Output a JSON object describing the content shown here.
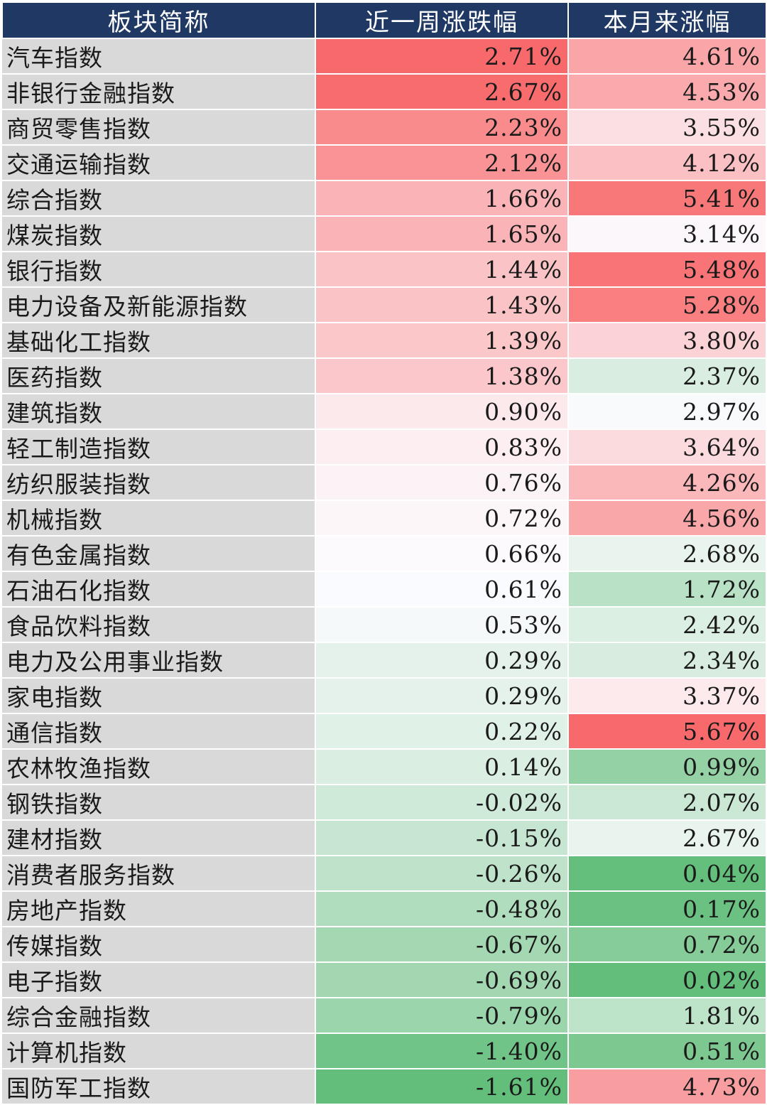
{
  "chart_data": {
    "type": "table",
    "columns": [
      "板块简称",
      "近一周涨跌幅",
      "本月来涨幅"
    ],
    "rows": [
      [
        "汽车指数",
        "2.71%",
        "4.61%"
      ],
      [
        "非银行金融指数",
        "2.67%",
        "4.53%"
      ],
      [
        "商贸零售指数",
        "2.23%",
        "3.55%"
      ],
      [
        "交通运输指数",
        "2.12%",
        "4.12%"
      ],
      [
        "综合指数",
        "1.66%",
        "5.41%"
      ],
      [
        "煤炭指数",
        "1.65%",
        "3.14%"
      ],
      [
        "银行指数",
        "1.44%",
        "5.48%"
      ],
      [
        "电力设备及新能源指数",
        "1.43%",
        "5.28%"
      ],
      [
        "基础化工指数",
        "1.39%",
        "3.80%"
      ],
      [
        "医药指数",
        "1.38%",
        "2.37%"
      ],
      [
        "建筑指数",
        "0.90%",
        "2.97%"
      ],
      [
        "轻工制造指数",
        "0.83%",
        "3.64%"
      ],
      [
        "纺织服装指数",
        "0.76%",
        "4.26%"
      ],
      [
        "机械指数",
        "0.72%",
        "4.56%"
      ],
      [
        "有色金属指数",
        "0.66%",
        "2.68%"
      ],
      [
        "石油石化指数",
        "0.61%",
        "1.72%"
      ],
      [
        "食品饮料指数",
        "0.53%",
        "2.42%"
      ],
      [
        "电力及公用事业指数",
        "0.29%",
        "2.34%"
      ],
      [
        "家电指数",
        "0.29%",
        "3.37%"
      ],
      [
        "通信指数",
        "0.22%",
        "5.67%"
      ],
      [
        "农林牧渔指数",
        "0.14%",
        "0.99%"
      ],
      [
        "钢铁指数",
        "-0.02%",
        "2.07%"
      ],
      [
        "建材指数",
        "-0.15%",
        "2.67%"
      ],
      [
        "消费者服务指数",
        "-0.26%",
        "0.04%"
      ],
      [
        "房地产指数",
        "-0.48%",
        "0.17%"
      ],
      [
        "传媒指数",
        "-0.67%",
        "0.72%"
      ],
      [
        "电子指数",
        "-0.69%",
        "0.02%"
      ],
      [
        "综合金融指数",
        "-0.79%",
        "1.81%"
      ],
      [
        "计算机指数",
        "-1.40%",
        "0.51%"
      ],
      [
        "国防军工指数",
        "-1.61%",
        "4.73%"
      ]
    ],
    "color_scale": {
      "low": "#63be7b",
      "mid": "#fcfcff",
      "high": "#f8696b"
    },
    "header_color": "#1f3864",
    "name_column_color": "#d9d9d9"
  }
}
